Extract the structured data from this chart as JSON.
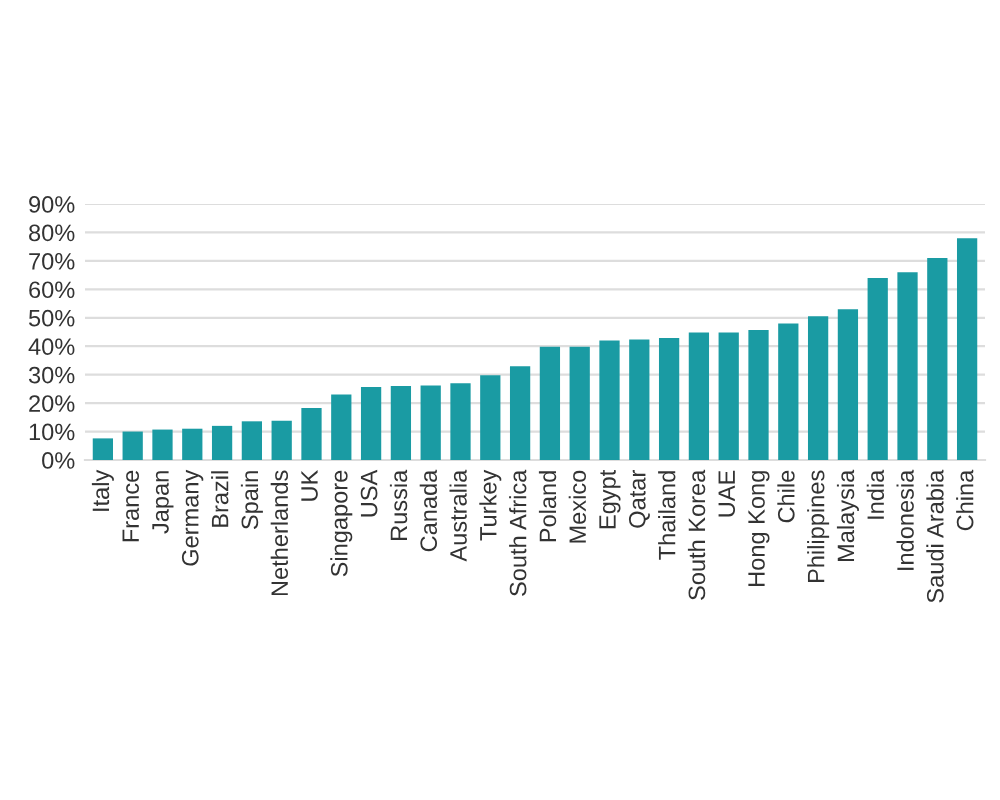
{
  "chart_data": {
    "type": "bar",
    "categories": [
      "Italy",
      "France",
      "Japan",
      "Germany",
      "Brazil",
      "Spain",
      "Netherlands",
      "UK",
      "Singapore",
      "USA",
      "Russia",
      "Canada",
      "Australia",
      "Turkey",
      "South Africa",
      "Poland",
      "Mexico",
      "Egypt",
      "Qatar",
      "Thailand",
      "South Korea",
      "UAE",
      "Hong Kong",
      "Chile",
      "Philippines",
      "Malaysia",
      "India",
      "Indonesia",
      "Saudi Arabia",
      "China"
    ],
    "values": [
      7.6,
      10,
      10.7,
      11,
      12,
      13.6,
      13.8,
      18.3,
      23,
      25.7,
      26,
      26.2,
      27,
      29.8,
      33,
      39.8,
      39.8,
      42,
      42.4,
      42.9,
      44.8,
      44.8,
      45.7,
      48,
      50.5,
      53,
      64,
      66,
      71,
      78
    ],
    "color": "#1a9ba3",
    "ylim": [
      0,
      90
    ],
    "yticks": [
      {
        "value": 0,
        "label": "0%"
      },
      {
        "value": 10,
        "label": "10%"
      },
      {
        "value": 20,
        "label": "20%"
      },
      {
        "value": 30,
        "label": "30%"
      },
      {
        "value": 40,
        "label": "40%"
      },
      {
        "value": 50,
        "label": "50%"
      },
      {
        "value": 60,
        "label": "60%"
      },
      {
        "value": 70,
        "label": "70%"
      },
      {
        "value": 80,
        "label": "80%"
      },
      {
        "value": 90,
        "label": "90%"
      }
    ],
    "grid": "y"
  }
}
